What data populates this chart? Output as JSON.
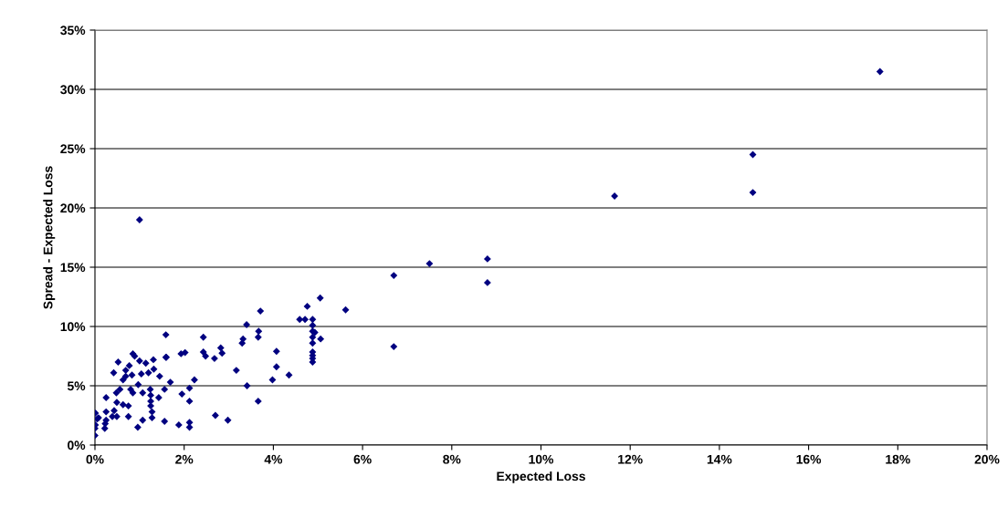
{
  "chart_data": {
    "type": "scatter",
    "xlabel": "Expected Loss",
    "ylabel": "Spread - Expected Loss",
    "xlim": [
      0,
      20
    ],
    "ylim": [
      0,
      35
    ],
    "xticks": [
      {
        "value": 0,
        "label": "0%"
      },
      {
        "value": 2,
        "label": "2%"
      },
      {
        "value": 4,
        "label": "4%"
      },
      {
        "value": 6,
        "label": "6%"
      },
      {
        "value": 8,
        "label": "8%"
      },
      {
        "value": 10,
        "label": "10%"
      },
      {
        "value": 12,
        "label": "12%"
      },
      {
        "value": 14,
        "label": "14%"
      },
      {
        "value": 16,
        "label": "16%"
      },
      {
        "value": 18,
        "label": "18%"
      },
      {
        "value": 20,
        "label": "20%"
      }
    ],
    "yticks": [
      {
        "value": 0,
        "label": "0%"
      },
      {
        "value": 5,
        "label": "5%"
      },
      {
        "value": 10,
        "label": "10%"
      },
      {
        "value": 15,
        "label": "15%"
      },
      {
        "value": 20,
        "label": "20%"
      },
      {
        "value": 25,
        "label": "25%"
      },
      {
        "value": 30,
        "label": "30%"
      },
      {
        "value": 35,
        "label": "35%"
      }
    ],
    "grid": "y",
    "marker": "diamond",
    "legend": false,
    "series": [
      {
        "color": "#000080",
        "x": [
          0.01,
          0,
          0,
          0.01,
          0.05,
          0.08,
          0.22,
          0.23,
          0.25,
          0.25,
          0.42,
          0.52,
          0.85,
          0.89,
          0.69,
          0.77,
          1.0,
          1.14,
          1.31,
          1.04,
          1.2,
          1.32,
          1.45,
          0.63,
          0.69,
          0.83,
          0.97,
          0.56,
          0.48,
          0.25,
          0.8,
          0.85,
          1.07,
          1.24,
          1.25,
          1.25,
          1.25,
          1.28,
          1.28,
          1.43,
          0.49,
          0.63,
          0.75,
          0.43,
          0.39,
          0.49,
          0.75,
          1.07,
          0.96,
          5.05,
          4.76,
          3.71,
          4.59,
          4.71,
          4.88,
          4.88,
          4.88,
          4.93,
          4.88,
          4.88,
          5.06,
          4.88,
          4.88,
          4.88,
          4.88,
          5.62,
          3.4,
          3.67,
          3.66,
          3.32,
          3.3,
          4.07,
          4.07,
          3.98,
          4.35,
          3.17,
          3.41,
          3.66,
          2.82,
          2.85,
          2.68,
          2.43,
          2.43,
          2.48,
          1.93,
          2.02,
          1.59,
          1.59,
          1.69,
          1.56,
          1.95,
          2.12,
          2.23,
          2.12,
          1.56,
          1.88,
          2.12,
          2.12,
          2.7,
          2.98,
          1.6,
          1.0,
          6.7,
          7.5,
          8.8,
          8.8,
          6.7,
          11.65,
          14.75,
          14.75,
          17.6
        ],
        "values": [
          2.7,
          1.4,
          0.8,
          1.7,
          2.2,
          2.3,
          1.4,
          1.8,
          2.8,
          2.1,
          6.1,
          7.0,
          7.7,
          7.5,
          6.3,
          6.7,
          7.1,
          6.9,
          7.2,
          6.0,
          6.1,
          6.4,
          5.8,
          5.5,
          5.8,
          5.9,
          5.1,
          4.7,
          4.4,
          4.0,
          4.7,
          4.4,
          4.4,
          4.7,
          4.2,
          3.7,
          3.3,
          2.8,
          2.3,
          4.0,
          3.6,
          3.4,
          3.3,
          2.9,
          2.4,
          2.4,
          2.4,
          2.1,
          1.5,
          12.4,
          11.7,
          11.3,
          10.6,
          10.6,
          10.6,
          10.1,
          9.6,
          9.5,
          9.1,
          8.6,
          8.95,
          7.85,
          7.55,
          7.3,
          7.0,
          11.4,
          10.15,
          9.6,
          9.1,
          8.95,
          8.6,
          7.9,
          6.6,
          5.5,
          5.9,
          6.3,
          5.0,
          3.7,
          8.2,
          7.75,
          7.3,
          9.1,
          7.85,
          7.5,
          7.7,
          7.8,
          9.3,
          7.4,
          5.3,
          4.7,
          4.3,
          4.8,
          5.5,
          3.7,
          2.0,
          1.7,
          1.9,
          1.5,
          2.5,
          2.1,
          7.4,
          19.0,
          14.3,
          15.3,
          15.7,
          13.7,
          8.3,
          21.0,
          24.5,
          21.3,
          31.5
        ]
      }
    ]
  }
}
